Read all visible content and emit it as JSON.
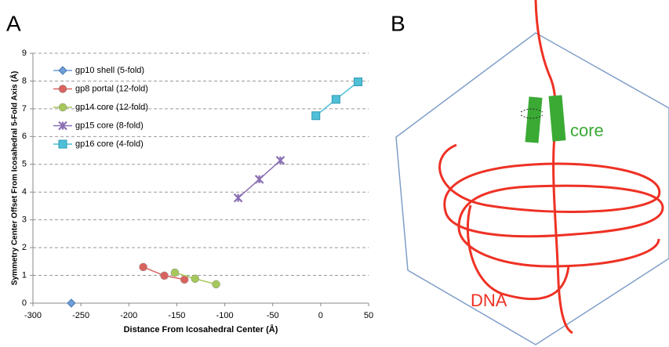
{
  "panel_labels": [
    "A",
    "B"
  ],
  "chart_data": {
    "type": "line",
    "xlabel": "Distance From Icosahedral Center (Å)",
    "ylabel": "Symmetry Center Offset From Icosahedral 5-Fold Axis (Å)",
    "xlim": [
      -300,
      50
    ],
    "xticks": [
      -300,
      -250,
      -200,
      -150,
      -100,
      -50,
      0,
      50
    ],
    "ylim": [
      0,
      9
    ],
    "yticks": [
      0,
      1,
      2,
      3,
      4,
      5,
      6,
      7,
      8,
      9
    ],
    "grid": true,
    "legend": "upper left",
    "series": [
      {
        "name": "gp10 shell (5-fold)",
        "color": "#6f9fd8",
        "marker": "diamond",
        "x": [
          -260
        ],
        "values": [
          0
        ]
      },
      {
        "name": "gp8 portal (12-fold)",
        "color": "#d9635f",
        "marker": "circle",
        "x": [
          -185,
          -163,
          -142
        ],
        "values": [
          1.3,
          0.99,
          0.85
        ]
      },
      {
        "name": "gp14 core (12-fold)",
        "color": "#a6c85a",
        "marker": "circle",
        "x": [
          -152,
          -131,
          -109
        ],
        "values": [
          1.1,
          0.88,
          0.68
        ]
      },
      {
        "name": "gp15 core (8-fold)",
        "color": "#8a6fb3",
        "marker": "star",
        "x": [
          -86,
          -64,
          -42
        ],
        "values": [
          3.79,
          4.46,
          5.14
        ]
      },
      {
        "name": "gp16 core (4-fold)",
        "color": "#4fc0d8",
        "marker": "square",
        "x": [
          -5,
          16,
          39
        ],
        "values": [
          6.75,
          7.34,
          7.97
        ]
      }
    ]
  },
  "diagram": {
    "core_label": "core",
    "dna_label": "DNA"
  }
}
